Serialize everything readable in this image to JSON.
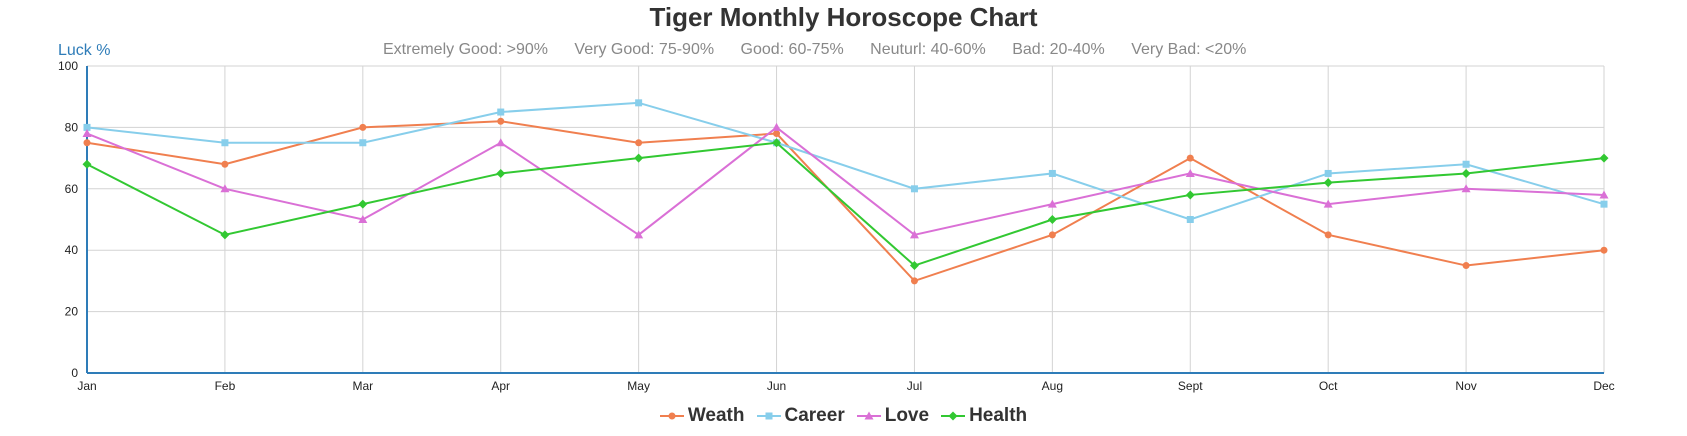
{
  "chart_data": {
    "type": "line",
    "title": "Tiger Monthly Horoscope Chart",
    "ylabel": "Luck %",
    "categories": [
      "Jan",
      "Feb",
      "Mar",
      "Apr",
      "May",
      "Jun",
      "Jul",
      "Aug",
      "Sept",
      "Oct",
      "Nov",
      "Dec"
    ],
    "ylim": [
      0,
      100
    ],
    "yticks": [
      0,
      20,
      40,
      60,
      80,
      100
    ],
    "grid": true,
    "legend_position": "bottom",
    "ranges": [
      "Extremely Good: >90%",
      "Very Good: 75-90%",
      "Good: 60-75%",
      "Neuturl: 40-60%",
      "Bad: 20-40%",
      "Very Bad: <20%"
    ],
    "series": [
      {
        "name": "Weath",
        "color": "#f07f4f",
        "marker": "circle",
        "values": [
          75,
          68,
          80,
          82,
          75,
          78,
          30,
          45,
          70,
          45,
          35,
          40
        ]
      },
      {
        "name": "Career",
        "color": "#87ceeb",
        "marker": "square",
        "values": [
          80,
          75,
          75,
          85,
          88,
          75,
          60,
          65,
          50,
          65,
          68,
          55
        ]
      },
      {
        "name": "Love",
        "color": "#da70d6",
        "marker": "triangle",
        "values": [
          78,
          60,
          50,
          75,
          45,
          80,
          45,
          55,
          65,
          55,
          60,
          58
        ]
      },
      {
        "name": "Health",
        "color": "#32c832",
        "marker": "diamond",
        "values": [
          68,
          45,
          55,
          65,
          70,
          75,
          35,
          50,
          58,
          62,
          65,
          70
        ]
      }
    ]
  }
}
